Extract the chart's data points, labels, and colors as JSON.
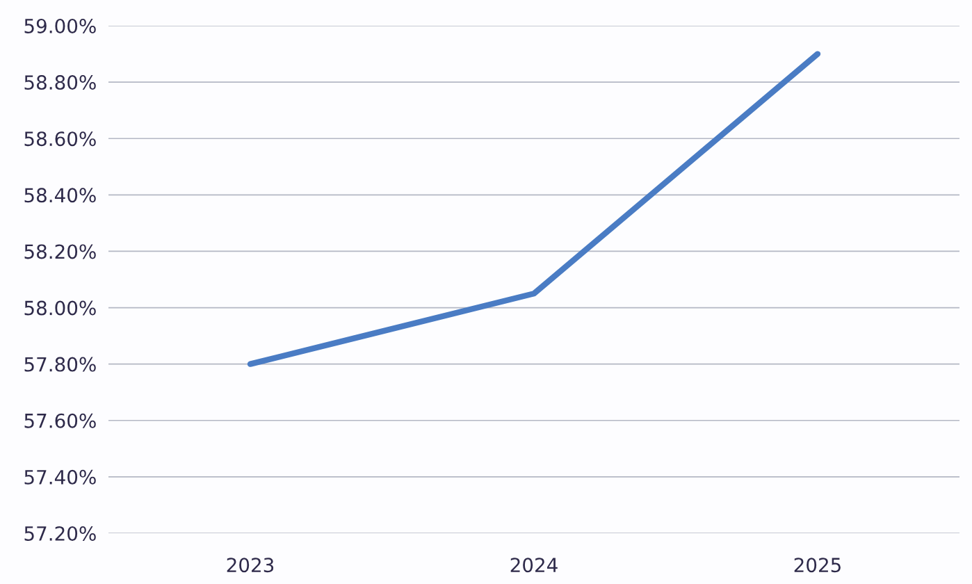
{
  "chart_data": {
    "type": "line",
    "categories": [
      "2023",
      "2024",
      "2025"
    ],
    "series": [
      {
        "color": "#4a7cc4",
        "values": [
          57.8,
          58.05,
          58.9
        ]
      }
    ],
    "ylim": [
      57.2,
      59.0
    ],
    "yticks": [
      {
        "value": 57.2,
        "label": "57.20%"
      },
      {
        "value": 57.4,
        "label": "57.40%"
      },
      {
        "value": 57.6,
        "label": "57.60%"
      },
      {
        "value": 57.8,
        "label": "57.80%"
      },
      {
        "value": 58.0,
        "label": "58.00%"
      },
      {
        "value": 58.2,
        "label": "58.20%"
      },
      {
        "value": 58.4,
        "label": "58.40%"
      },
      {
        "value": 58.6,
        "label": "58.60%"
      },
      {
        "value": 58.8,
        "label": "58.80%"
      },
      {
        "value": 59.0,
        "label": "59.00%"
      }
    ],
    "grid": "y",
    "marker": "none",
    "line_style": "solid",
    "legend": false
  }
}
